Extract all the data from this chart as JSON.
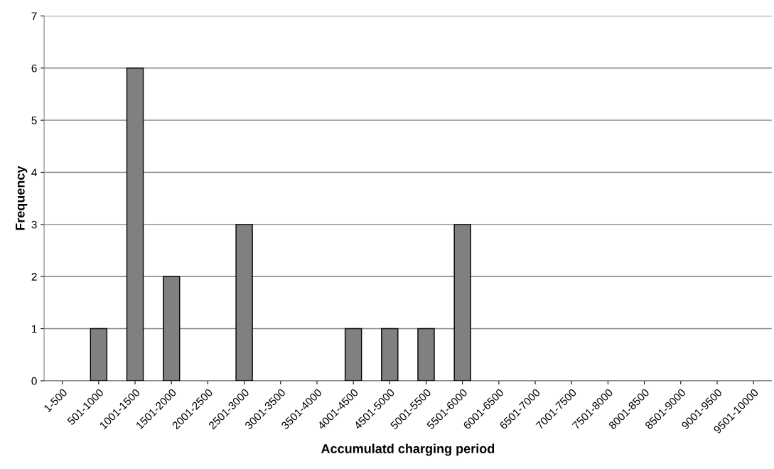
{
  "chart_data": {
    "type": "bar",
    "xlabel": "Accumulatd charging period",
    "ylabel": "Frequency",
    "categories": [
      "1-500",
      "501-1000",
      "1001-1500",
      "1501-2000",
      "2001-2500",
      "2501-3000",
      "3001-3500",
      "3501-4000",
      "4001-4500",
      "4501-5000",
      "5001-5500",
      "5501-6000",
      "6001-6500",
      "6501-7000",
      "7001-7500",
      "7501-8000",
      "8001-8500",
      "8501-9000",
      "9001-9500",
      "9501-10000"
    ],
    "values": [
      0,
      1,
      6,
      2,
      0,
      3,
      0,
      0,
      1,
      1,
      1,
      3,
      0,
      0,
      0,
      0,
      0,
      0,
      0,
      0
    ],
    "color": "#808080",
    "ylim": [
      0,
      7
    ],
    "yticks": [
      0,
      1,
      2,
      3,
      4,
      5,
      6,
      7
    ],
    "grid": "y",
    "legend": false
  }
}
